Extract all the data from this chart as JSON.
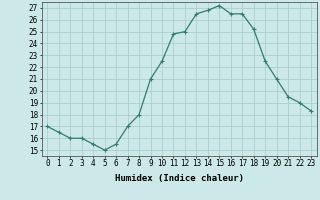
{
  "x": [
    0,
    1,
    2,
    3,
    4,
    5,
    6,
    7,
    8,
    9,
    10,
    11,
    12,
    13,
    14,
    15,
    16,
    17,
    18,
    19,
    20,
    21,
    22,
    23
  ],
  "y": [
    17,
    16.5,
    16,
    16,
    15.5,
    15,
    15.5,
    17,
    18,
    21,
    22.5,
    24.8,
    25,
    26.5,
    26.8,
    27.2,
    26.5,
    26.5,
    25.2,
    22.5,
    21,
    19.5,
    19,
    18.3
  ],
  "line_color": "#2e7d6e",
  "marker": "+",
  "marker_size": 3,
  "marker_edge_width": 0.8,
  "line_width": 0.9,
  "bg_color": "#cce8e8",
  "grid_color": "#aacfcf",
  "xlabel": "Humidex (Indice chaleur)",
  "xlim": [
    -0.5,
    23.5
  ],
  "ylim": [
    14.5,
    27.5
  ],
  "yticks": [
    15,
    16,
    17,
    18,
    19,
    20,
    21,
    22,
    23,
    24,
    25,
    26,
    27
  ],
  "xticks": [
    0,
    1,
    2,
    3,
    4,
    5,
    6,
    7,
    8,
    9,
    10,
    11,
    12,
    13,
    14,
    15,
    16,
    17,
    18,
    19,
    20,
    21,
    22,
    23
  ],
  "tick_fontsize": 5.5,
  "label_fontsize": 6.5
}
